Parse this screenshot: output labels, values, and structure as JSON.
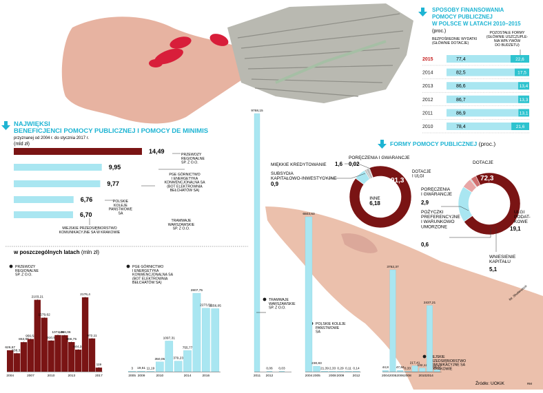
{
  "colors": {
    "dark_red": "#7a1414",
    "light_blue": "#a9e6f1",
    "teal": "#2ec3cf",
    "pink": "#e8a6a6",
    "gray": "#bdbdbd",
    "title_blue": "#1eb4d3",
    "arrow_blue": "#1eb4d3"
  },
  "icons": {
    "section_arrow": "down-arrow-icon"
  },
  "source": "Źródło: UOKiK",
  "credit": "RM",
  "photo_credit": "fot. Shutterstock",
  "chart_data": [
    {
      "id": "beneficiaries",
      "type": "bar",
      "orientation": "horizontal",
      "title": "NAJWIĘKSI BENEFICJENCI POMOCY PUBLICZNEJ I POMOCY DE MINIMIS",
      "subtitle": "przyznanej od 2004 r. do stycznia 2017 r.",
      "unit": "(mld zł)",
      "categories": [
        "PRZEWOZY REGIONALNE SP. Z O.O.",
        "PGE GÓRNICTWO I ENERGETYKA KONWENCJONALNA SA (BOT ELEKTROWNIA BEŁCHATÓW SA)",
        "TRAMWAJE WARSZAWSKIE SP. Z O.O.",
        "POLSKIE KOLEJE PAŃSTWOWE SA",
        "MIEJSKIE PRZEDSIĘBIORSTWO KOMUNIKACYJNE SA W KRAKOWIE"
      ],
      "values": [
        14.49,
        9.95,
        9.77,
        6.76,
        6.7
      ],
      "value_labels": [
        "14,49",
        "9,95",
        "9,77",
        "6,76",
        "6,70"
      ]
    },
    {
      "id": "yearly",
      "type": "bar",
      "title": "w poszczególnych latach",
      "unit": "(mln zł)",
      "series": [
        {
          "name": "PRZEWOZY REGIONALNE SP. Z O.O.",
          "label_lines": [
            "PRZEWOZY",
            "REGIONALNE",
            "SP. Z O.O."
          ],
          "color": "#7a1414",
          "x_ticks": [
            "2004",
            "2007",
            "2010",
            "2013",
            "2017"
          ],
          "values": [
            626.67,
            538.31,
            863.96,
            956.58,
            2103.21,
            1579.62,
            910.5,
            1071.48,
            1066.06,
            866.75,
            644.24,
            2176.4,
            972.11,
            119
          ],
          "value_labels": [
            "626,67",
            "538,31",
            "863,96",
            "956,58",
            "2103,21",
            "1579,62",
            "910,5",
            "1071,48",
            "1066,06",
            "866,75",
            "644,24",
            "2176,4",
            "972,11",
            "119"
          ]
        },
        {
          "name": "PGE GÓRNICTWO I ENERGETYKA KONWENCJONALNA SA (BOT ELEKTROWNIA BEŁCHATÓW SA)",
          "label_lines": [
            "PGE GÓRNICTWO",
            "I ENERGETYKA",
            "KONWENCJONALNA SA",
            "(BOT ELEKTROWNIA",
            "BEŁCHATÓW SA)"
          ],
          "color": "#a9e6f1",
          "x_ticks": [
            "2005",
            "2009",
            "2010",
            "2014",
            "2016"
          ],
          "values": [
            3,
            19.51,
            11.19,
            350.05,
            1097.31,
            379.23,
            755.77,
            2807.75,
            2273.51,
            2256.05
          ],
          "value_labels": [
            "3",
            "19,51",
            "11,19",
            "350,05",
            "1097,31",
            "379,23",
            "755,77",
            "2807,75",
            "2273,51",
            "2256,05"
          ]
        },
        {
          "name": "TRAMWAJE WARSZAWSKIE SP. Z O.O.",
          "label_lines": [
            "TRAMWAJE",
            "WARSZAWSKIE",
            "SP. Z O.O."
          ],
          "color": "#a9e6f1",
          "x_ticks": [
            "2011",
            "2012"
          ],
          "values": [
            9768.15,
            0.06,
            0.03
          ],
          "value_labels": [
            "9768,15",
            "0,06",
            "0,03"
          ]
        },
        {
          "name": "POLSKIE KOLEJE PAŃSTWOWE SA",
          "label_lines": [
            "POLSKIE KOLEJE",
            "PAŃSTWOWE",
            "SA"
          ],
          "color": "#a9e6f1",
          "x_ticks": [
            "2004",
            "2005",
            "2008",
            "2009",
            "2012"
          ],
          "values": [
            6503.63,
            230.83,
            21.39,
            2.33,
            0.29,
            0.11,
            0.14
          ],
          "value_labels": [
            "6503,63",
            "230,83",
            "21,39",
            "2,33",
            "0,29",
            "0,11",
            "0,14"
          ]
        },
        {
          "name": "MIEJSKIE PRZEDSIĘBIORSTWO KOMUNIKACYJNE SA W KRAKOWIE",
          "label_lines": [
            "MIEJSKIE",
            "PRZEDSIĘBIORSTWO",
            "KOMUNIKACYJNE SA",
            "W KRAKOWIE"
          ],
          "color": "#a9e6f1",
          "x_ticks": [
            "2004",
            "2005",
            "2006",
            "2008",
            "2010",
            "2014"
          ],
          "values": [
            44.8,
            3752.37,
            47.84,
            0.33,
            217.41,
            132.12,
            2437.21,
            69.37
          ],
          "value_labels": [
            "44,8",
            "3752,37",
            "47,84",
            "0,33",
            "217,41",
            "132,12",
            "2437,21",
            "69,37"
          ]
        }
      ]
    },
    {
      "id": "financing",
      "type": "bar",
      "stacked": true,
      "orientation": "horizontal",
      "title": "SPOSOBY FINANSOWANIA POMOCY PUBLICZNEJ W POLSCE W LATACH 2010–2015",
      "unit": "(proc.)",
      "col_headers": [
        "BEZPOŚREDNIE WYDATKI (GŁÓWNIE DOTACJE)",
        "POZOSTAŁE FORMY (GŁÓWNIE USZCZUPLENIA WPŁYWÓW DO BUDŻETU)"
      ],
      "categories": [
        "2015",
        "2014",
        "2013",
        "2012",
        "2011",
        "2010"
      ],
      "series": [
        {
          "name": "BEZPOŚREDNIE WYDATKI (GŁÓWNIE DOTACJE)",
          "values": [
            77.4,
            82.5,
            86.6,
            86.7,
            86.9,
            78.4
          ],
          "value_labels": [
            "77,4",
            "82,5",
            "86,6",
            "86,7",
            "86,9",
            "78,4"
          ]
        },
        {
          "name": "POZOSTAŁE FORMY (GŁÓWNIE USZCZUPLENIA WPŁYWÓW DO BUDŻETU)",
          "values": [
            22.6,
            17.5,
            13.4,
            13.3,
            13.1,
            21.6
          ],
          "value_labels": [
            "22,6",
            "17,5",
            "13,4",
            "13,3",
            "13,1",
            "21,6"
          ]
        }
      ]
    },
    {
      "id": "forms",
      "type": "pie",
      "title": "FORMY POMOCY PUBLICZNEJ",
      "unit": "(proc.)",
      "charts": [
        {
          "year": "2010",
          "slices": [
            {
              "label": "DOTACJE I ULGI",
              "value": 91.3,
              "value_label": "91,3"
            },
            {
              "label": "INNE",
              "value": 6.18,
              "value_label": "6,18"
            },
            {
              "label": "SUBSYDIA KAPITAŁOWO-INWESTYCYJNE",
              "value": 0.9,
              "value_label": "0,9"
            },
            {
              "label": "MIĘKKIE KREDYTOWANIE",
              "value": 1.6,
              "value_label": "1,6"
            },
            {
              "label": "PORĘCZENIA I GWARANCJE",
              "value": 0.02,
              "value_label": "0,02"
            }
          ]
        },
        {
          "year": "2015",
          "slices": [
            {
              "label": "DOTACJE",
              "value": 72.3,
              "value_label": "72,3"
            },
            {
              "label": "ULGI PODATKOWE",
              "value": 19.1,
              "value_label": "19,1"
            },
            {
              "label": "WNIESIENIE KAPITAŁU",
              "value": 5.1,
              "value_label": "5,1"
            },
            {
              "label": "POŻYCZKI PREFERENCYJNE I WARUNKOWO UMORZONE",
              "value": 0.6,
              "value_label": "0,6"
            },
            {
              "label": "PORĘCZENIA I GWARANCJE",
              "value": 2.9,
              "value_label": "2,9"
            }
          ]
        }
      ]
    }
  ]
}
